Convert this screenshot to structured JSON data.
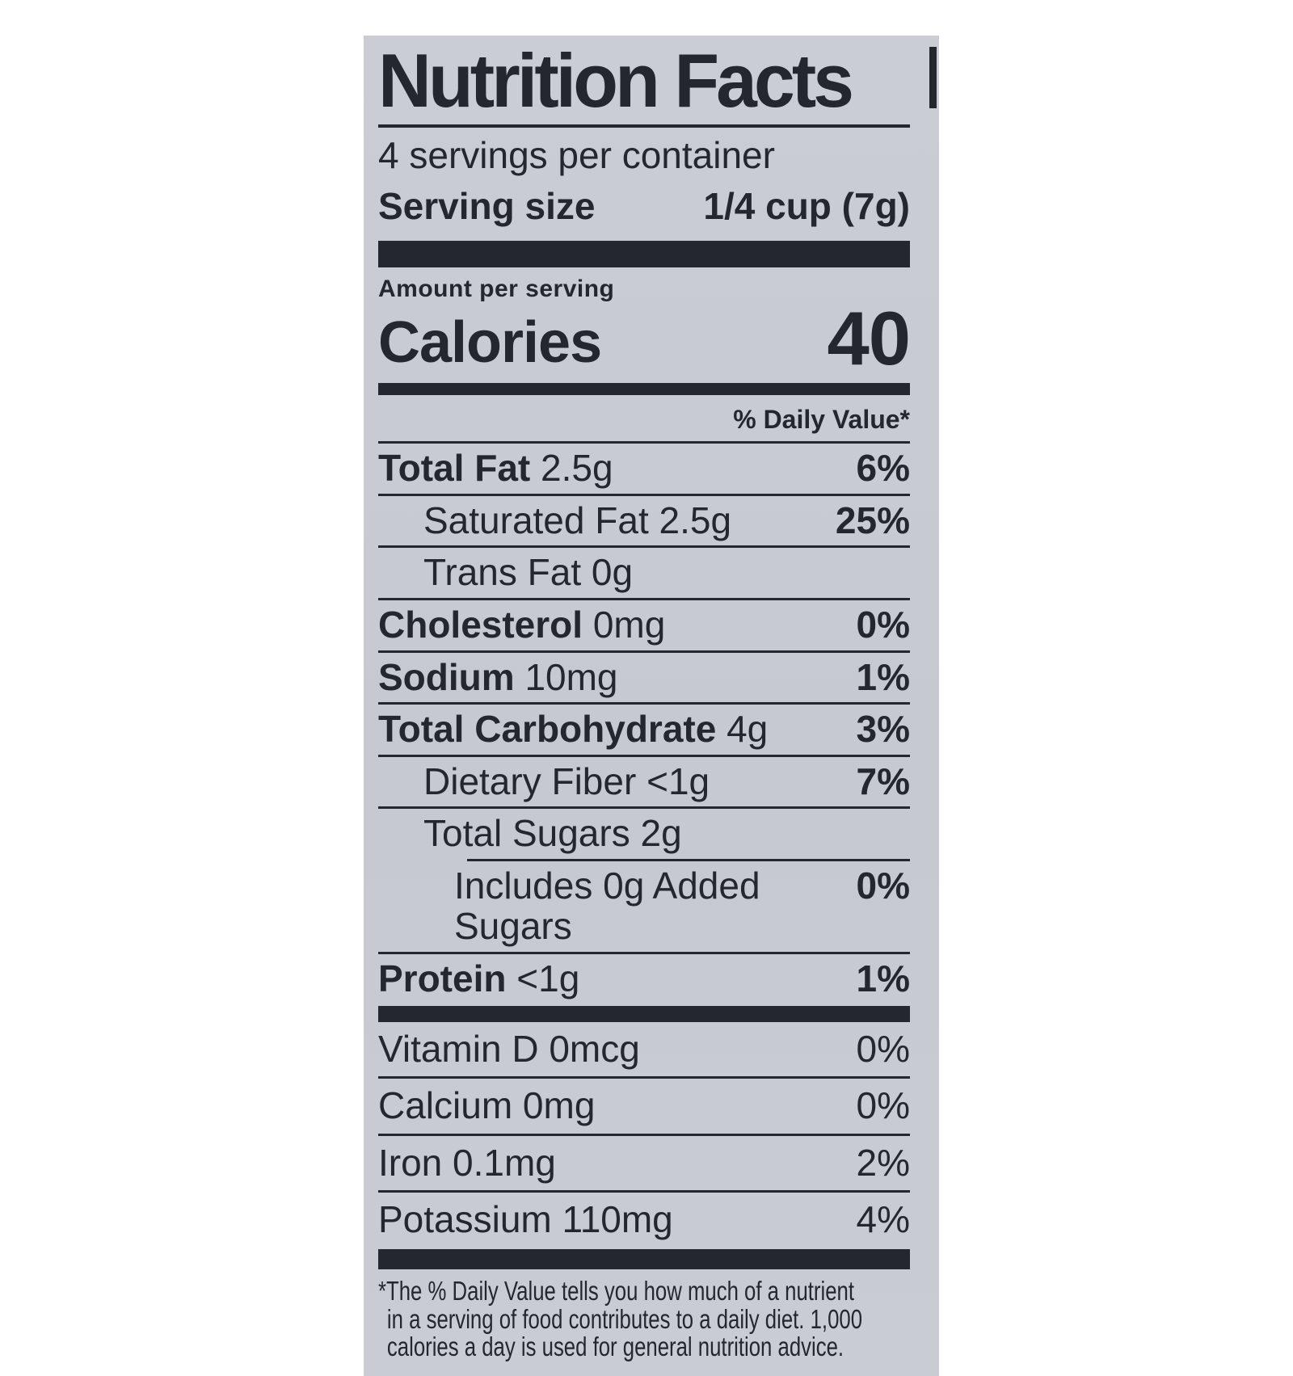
{
  "colors": {
    "page_background": "#ffffff",
    "label_background": "#c8ccd2",
    "ink": "#24272e"
  },
  "label": {
    "title": "Nutrition Facts",
    "servings_per_container": "4 servings per container",
    "serving_size_label": "Serving size",
    "serving_size_value": "1/4 cup (7g)",
    "amount_per_serving_label": "Amount per serving",
    "calories_label": "Calories",
    "calories_value": "40",
    "daily_value_header": "% Daily Value*",
    "nutrient_rows": [
      {
        "name": "Total Fat",
        "amount": "2.5g",
        "percent": "6%",
        "name_bold": true,
        "indent": 0
      },
      {
        "name": "Saturated Fat",
        "amount": "2.5g",
        "percent": "25%",
        "name_bold": false,
        "indent": 1
      },
      {
        "name": "Trans Fat",
        "amount": "0g",
        "percent": "",
        "name_bold": false,
        "indent": 1
      },
      {
        "name": "Cholesterol",
        "amount": "0mg",
        "percent": "0%",
        "name_bold": true,
        "indent": 0
      },
      {
        "name": "Sodium",
        "amount": "10mg",
        "percent": "1%",
        "name_bold": true,
        "indent": 0
      },
      {
        "name": "Total Carbohydrate",
        "amount": "4g",
        "percent": "3%",
        "name_bold": true,
        "indent": 0
      },
      {
        "name": "Dietary Fiber",
        "amount": "<1g",
        "percent": "7%",
        "name_bold": false,
        "indent": 1
      },
      {
        "name": "Total Sugars",
        "amount": "2g",
        "percent": "",
        "name_bold": false,
        "indent": 1
      },
      {
        "name": "Includes 0g Added Sugars",
        "amount": "",
        "percent": "0%",
        "name_bold": false,
        "indent": 2,
        "rule_indented": true
      },
      {
        "name": "Protein",
        "amount": "<1g",
        "percent": "1%",
        "name_bold": true,
        "indent": 0
      }
    ],
    "micronutrient_rows": [
      {
        "name": "Vitamin D",
        "amount": "0mcg",
        "percent": "0%"
      },
      {
        "name": "Calcium",
        "amount": "0mg",
        "percent": "0%"
      },
      {
        "name": "Iron",
        "amount": "0.1mg",
        "percent": "2%"
      },
      {
        "name": "Potassium",
        "amount": "110mg",
        "percent": "4%"
      }
    ],
    "footnote_lines": [
      "*The % Daily Value tells you how much of a nutrient",
      "in a serving of food contributes to a daily diet. 1,000",
      "calories a day is used for general nutrition advice."
    ]
  }
}
